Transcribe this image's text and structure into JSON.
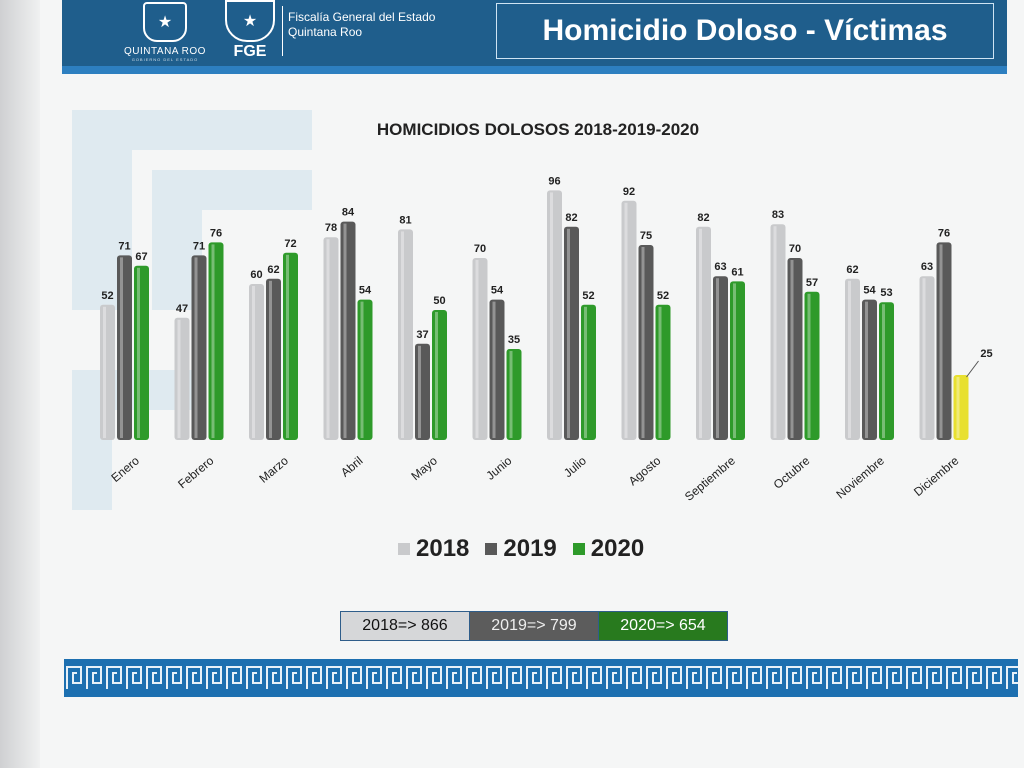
{
  "header": {
    "logo_left_text": "QUINTANA ROO",
    "logo_left_subtext": "GOBIERNO DEL ESTADO",
    "logo_right_text": "FGE",
    "org_line1": "Fiscalía General del Estado",
    "org_line2": "Quintana Roo",
    "title": "Homicidio Doloso - Víctimas",
    "color": "#1f5e8c"
  },
  "chart_data": {
    "type": "bar",
    "title": "HOMICIDIOS DOLOSOS 2018-2019-2020",
    "categories": [
      "Enero",
      "Febrero",
      "Marzo",
      "Abril",
      "Mayo",
      "Junio",
      "Julio",
      "Agosto",
      "Septiembre",
      "Octubre",
      "Noviembre",
      "Diciembre"
    ],
    "series": [
      {
        "name": "2018",
        "color": "#c9cacc",
        "values": [
          52,
          47,
          60,
          78,
          81,
          70,
          96,
          92,
          82,
          83,
          62,
          63
        ]
      },
      {
        "name": "2019",
        "color": "#595959",
        "values": [
          71,
          71,
          62,
          84,
          37,
          54,
          82,
          75,
          63,
          70,
          54,
          76
        ]
      },
      {
        "name": "2020",
        "color": "#2e9a2a",
        "values": [
          67,
          76,
          72,
          54,
          50,
          35,
          52,
          52,
          61,
          57,
          53,
          25
        ],
        "highlight_color": "#e8e030"
      }
    ],
    "ylim": [
      0,
      100
    ],
    "grid": false,
    "legend_position": "bottom"
  },
  "totals": [
    {
      "label": "2018=> 866",
      "color": "#d6d7d9"
    },
    {
      "label": "2019=> 799",
      "color": "#5c5c5c"
    },
    {
      "label": "2020=> 654",
      "color": "#287a1e"
    }
  ]
}
